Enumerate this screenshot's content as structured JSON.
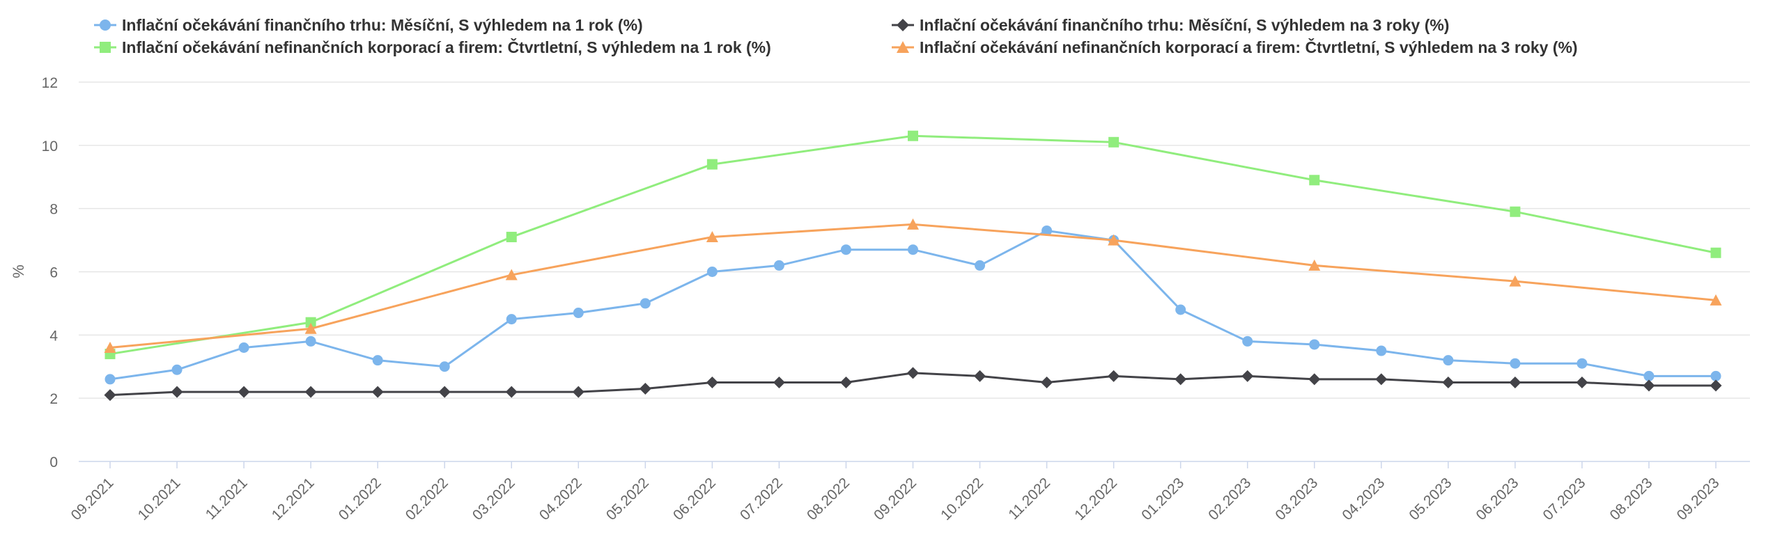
{
  "chart_data": {
    "type": "line",
    "title": "",
    "xlabel": "",
    "ylabel": "%",
    "ylim": [
      0,
      12
    ],
    "yticks": [
      0,
      2,
      4,
      6,
      8,
      10,
      12
    ],
    "grid": true,
    "legend_placement": "top",
    "categories": [
      "09.2021",
      "10.2021",
      "11.2021",
      "12.2021",
      "01.2022",
      "02.2022",
      "03.2022",
      "04.2022",
      "05.2022",
      "06.2022",
      "07.2022",
      "08.2022",
      "09.2022",
      "10.2022",
      "11.2022",
      "12.2022",
      "01.2023",
      "02.2023",
      "03.2023",
      "04.2023",
      "05.2023",
      "06.2023",
      "07.2023",
      "08.2023",
      "09.2023"
    ],
    "series": [
      {
        "name": "Inflační očekávání finančního trhu: Měsíční, S výhledem na 1 rok  (%)",
        "color": "#7cb5ec",
        "marker": "circle",
        "values": [
          2.6,
          2.9,
          3.6,
          3.8,
          3.2,
          3.0,
          4.5,
          4.7,
          5.0,
          6.0,
          6.2,
          6.7,
          6.7,
          6.2,
          7.3,
          7.0,
          4.8,
          3.8,
          3.7,
          3.5,
          3.2,
          3.1,
          3.1,
          2.7,
          2.7
        ]
      },
      {
        "name": "Inflační očekávání finančního trhu: Měsíční, S výhledem na 3 roky  (%)",
        "color": "#434348",
        "marker": "diamond",
        "values": [
          2.1,
          2.2,
          2.2,
          2.2,
          2.2,
          2.2,
          2.2,
          2.2,
          2.3,
          2.5,
          2.5,
          2.5,
          2.8,
          2.7,
          2.5,
          2.7,
          2.6,
          2.7,
          2.6,
          2.6,
          2.5,
          2.5,
          2.5,
          2.4,
          2.4
        ]
      },
      {
        "name": "Inflační očekávání nefinančních korporací a firem: Čtvrtletní, S výhledem na 1 rok  (%)",
        "color": "#90ed7d",
        "marker": "square",
        "values": [
          3.4,
          null,
          null,
          4.4,
          null,
          null,
          7.1,
          null,
          null,
          9.4,
          null,
          null,
          10.3,
          null,
          null,
          10.1,
          null,
          null,
          8.9,
          null,
          null,
          7.9,
          null,
          null,
          6.6
        ]
      },
      {
        "name": "Inflační očekávání nefinančních korporací a firem: Čtvrtletní, S výhledem na 3 roky  (%)",
        "color": "#f7a35c",
        "marker": "triangle",
        "values": [
          3.6,
          null,
          null,
          4.2,
          null,
          null,
          5.9,
          null,
          null,
          7.1,
          null,
          null,
          7.5,
          null,
          null,
          7.0,
          null,
          null,
          6.2,
          null,
          null,
          5.7,
          null,
          null,
          5.1
        ]
      }
    ]
  }
}
